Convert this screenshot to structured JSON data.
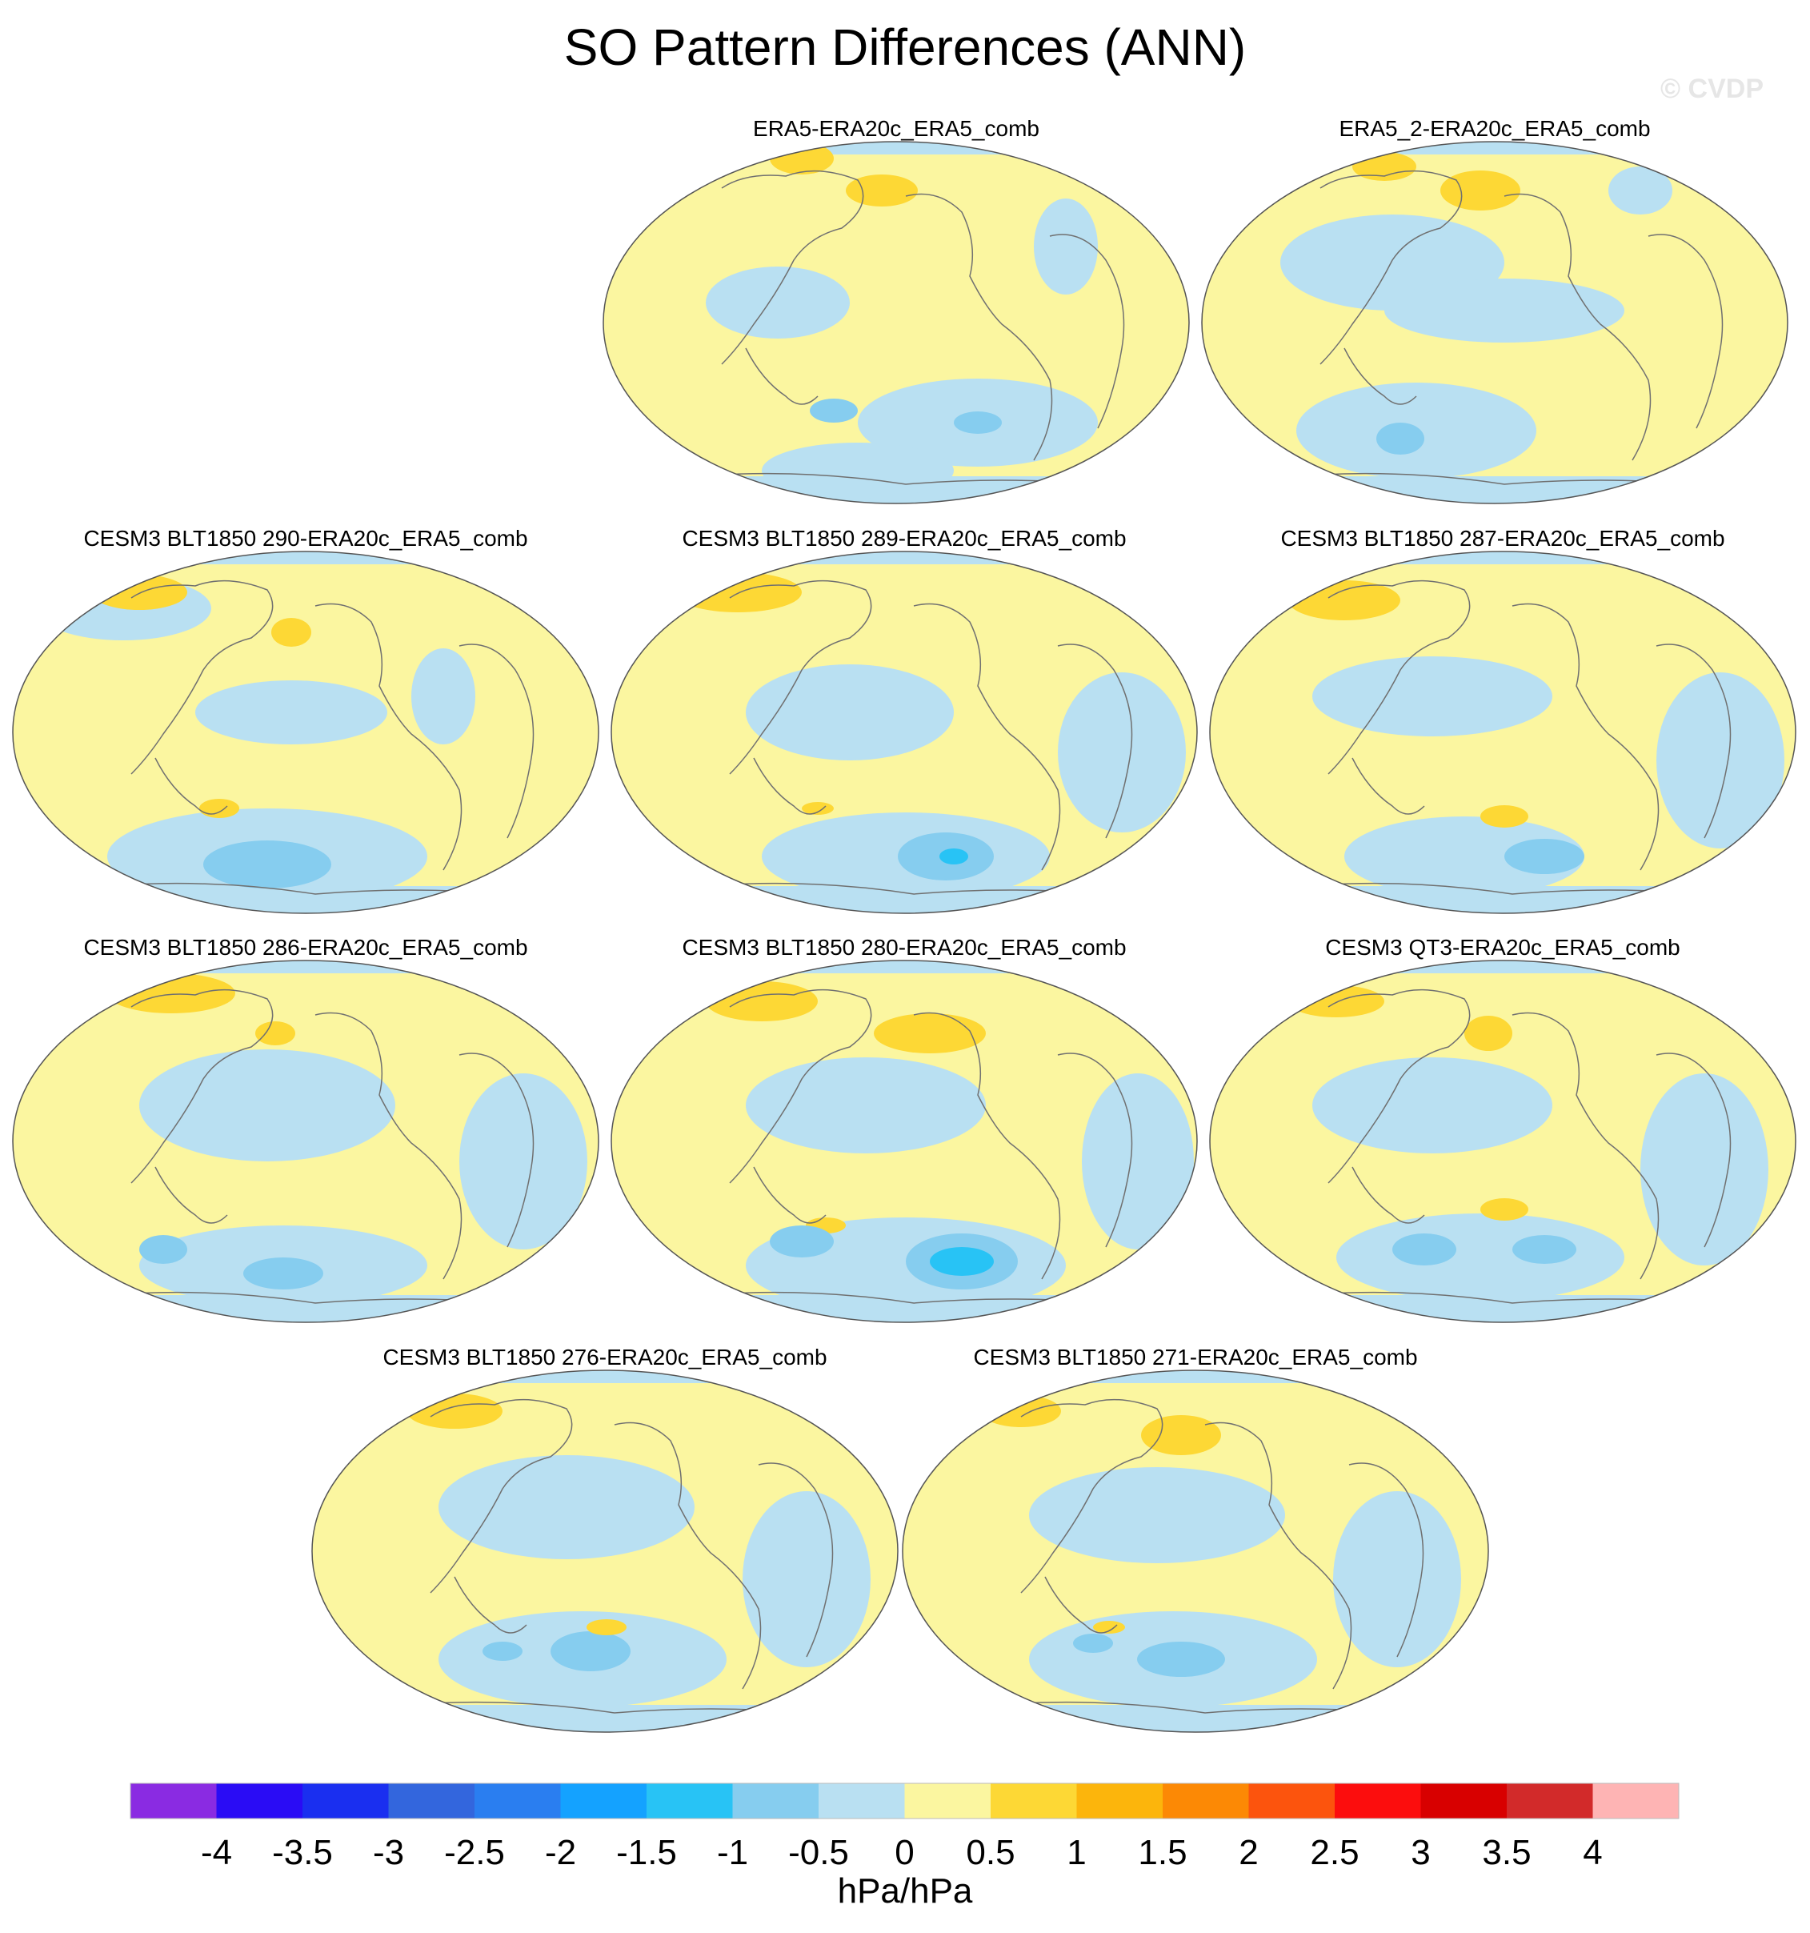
{
  "title": "SO Pattern Differences (ANN)",
  "watermark": "© CVDP",
  "panels": [
    {
      "title": "ERA5-ERA20c_ERA5_comb"
    },
    {
      "title": "ERA5_2-ERA20c_ERA5_comb"
    },
    {
      "title": "CESM3 BLT1850 290-ERA20c_ERA5_comb"
    },
    {
      "title": "CESM3 BLT1850 289-ERA20c_ERA5_comb"
    },
    {
      "title": "CESM3 BLT1850 287-ERA20c_ERA5_comb"
    },
    {
      "title": "CESM3 BLT1850 286-ERA20c_ERA5_comb"
    },
    {
      "title": "CESM3 BLT1850 280-ERA20c_ERA5_comb"
    },
    {
      "title": "CESM3 QT3-ERA20c_ERA5_comb"
    },
    {
      "title": "CESM3 BLT1850 276-ERA20c_ERA5_comb"
    },
    {
      "title": "CESM3 BLT1850 271-ERA20c_ERA5_comb"
    }
  ],
  "colorbar": {
    "units": "hPa/hPa",
    "labels": [
      "-4",
      "-3.5",
      "-3",
      "-2.5",
      "-2",
      "-1.5",
      "-1",
      "-0.5",
      "0",
      "0.5",
      "1",
      "1.5",
      "2",
      "2.5",
      "3",
      "3.5",
      "4"
    ],
    "colors": [
      "#8a2be2",
      "#2a0cf5",
      "#1a2ff0",
      "#3366dd",
      "#2a7ef0",
      "#14a2ff",
      "#28c3f5",
      "#86cdef",
      "#b9e0f2",
      "#fbf6a0",
      "#fdd835",
      "#fcb50c",
      "#fc8905",
      "#fc540d",
      "#fc0d0d",
      "#d80000",
      "#d22a2a",
      "#feb4b4"
    ]
  },
  "map_colors": {
    "ocean_pos": "#fbf6a0",
    "neg_light": "#b9e0f2",
    "neg_mid": "#86cdef",
    "neg_strong": "#28c3f5",
    "pos_mid": "#fdd835",
    "pos_strong": "#fcb50c",
    "coast": "#707070"
  }
}
